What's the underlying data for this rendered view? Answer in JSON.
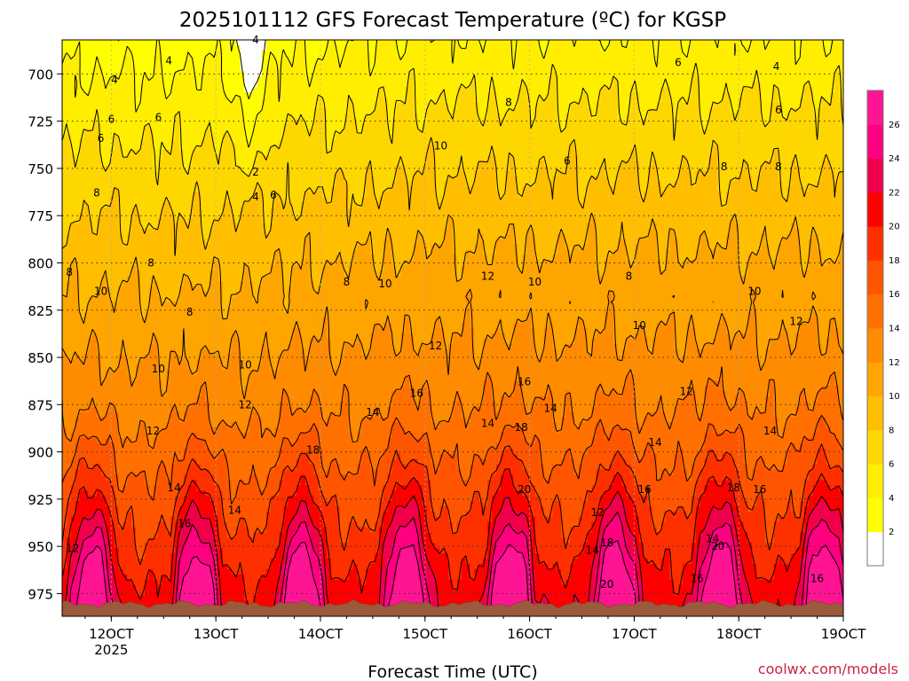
{
  "chart_data": {
    "type": "heatmap",
    "title": "2025101112 GFS Forecast Temperature (ºC) for KGSP",
    "xlabel": "Forecast Time (UTC)",
    "ylabel": "",
    "credit": "coolwx.com/models",
    "x_ticks": [
      {
        "day": 12,
        "label": "12OCT",
        "sub": "2025"
      },
      {
        "day": 13,
        "label": "13OCT"
      },
      {
        "day": 14,
        "label": "14OCT"
      },
      {
        "day": 15,
        "label": "15OCT"
      },
      {
        "day": 16,
        "label": "16OCT"
      },
      {
        "day": 17,
        "label": "17OCT"
      },
      {
        "day": 18,
        "label": "18OCT"
      },
      {
        "day": 19,
        "label": "19OCT"
      }
    ],
    "xlim": [
      11.53,
      19.0
    ],
    "y_ticks": [
      700,
      725,
      750,
      775,
      800,
      825,
      850,
      875,
      900,
      925,
      950,
      975
    ],
    "ylim": [
      682,
      987
    ],
    "colorbar": {
      "levels": [
        2,
        4,
        6,
        8,
        10,
        12,
        14,
        16,
        18,
        20,
        22,
        24,
        26
      ],
      "colors": [
        "#ffffff",
        "#ffff00",
        "#ffee00",
        "#ffd700",
        "#ffbf00",
        "#ffa500",
        "#ff8c00",
        "#ff7000",
        "#ff5500",
        "#ff3000",
        "#ff0000",
        "#f0004a",
        "#ff0080",
        "#ff1493"
      ]
    },
    "terrain_color": "#9b5a3c",
    "contour_labels": [
      {
        "day": 12.03,
        "p": 703,
        "t": "4"
      },
      {
        "day": 12.55,
        "p": 693,
        "t": "4"
      },
      {
        "day": 13.38,
        "p": 682,
        "t": "4"
      },
      {
        "day": 13.38,
        "p": 752,
        "t": "2"
      },
      {
        "day": 13.38,
        "p": 765,
        "t": "4"
      },
      {
        "day": 13.55,
        "p": 764,
        "t": "6"
      },
      {
        "day": 12.0,
        "p": 724,
        "t": "6"
      },
      {
        "day": 12.45,
        "p": 723,
        "t": "6"
      },
      {
        "day": 11.9,
        "p": 734,
        "t": "6"
      },
      {
        "day": 16.36,
        "p": 746,
        "t": "6"
      },
      {
        "day": 17.42,
        "p": 694,
        "t": "6"
      },
      {
        "day": 18.36,
        "p": 696,
        "t": "4"
      },
      {
        "day": 18.38,
        "p": 719,
        "t": "6"
      },
      {
        "day": 11.86,
        "p": 763,
        "t": "8"
      },
      {
        "day": 11.6,
        "p": 805,
        "t": "8"
      },
      {
        "day": 12.38,
        "p": 800,
        "t": "8"
      },
      {
        "day": 12.75,
        "p": 826,
        "t": "8"
      },
      {
        "day": 14.25,
        "p": 810,
        "t": "8"
      },
      {
        "day": 15.8,
        "p": 715,
        "t": "8"
      },
      {
        "day": 16.95,
        "p": 807,
        "t": "8"
      },
      {
        "day": 17.86,
        "p": 749,
        "t": "8"
      },
      {
        "day": 18.38,
        "p": 749,
        "t": "8"
      },
      {
        "day": 11.9,
        "p": 815,
        "t": "10"
      },
      {
        "day": 12.45,
        "p": 856,
        "t": "10"
      },
      {
        "day": 13.28,
        "p": 854,
        "t": "10"
      },
      {
        "day": 14.62,
        "p": 811,
        "t": "10"
      },
      {
        "day": 15.15,
        "p": 738,
        "t": "10"
      },
      {
        "day": 16.05,
        "p": 810,
        "t": "10"
      },
      {
        "day": 17.05,
        "p": 833,
        "t": "10"
      },
      {
        "day": 18.15,
        "p": 815,
        "t": "10"
      },
      {
        "day": 12.4,
        "p": 889,
        "t": "12"
      },
      {
        "day": 13.28,
        "p": 875,
        "t": "12"
      },
      {
        "day": 11.63,
        "p": 951,
        "t": "12"
      },
      {
        "day": 15.1,
        "p": 844,
        "t": "12"
      },
      {
        "day": 15.6,
        "p": 807,
        "t": "12"
      },
      {
        "day": 16.65,
        "p": 932,
        "t": "12"
      },
      {
        "day": 17.5,
        "p": 868,
        "t": "12"
      },
      {
        "day": 18.55,
        "p": 831,
        "t": "12"
      },
      {
        "day": 12.6,
        "p": 919,
        "t": "14"
      },
      {
        "day": 13.18,
        "p": 931,
        "t": "14"
      },
      {
        "day": 14.5,
        "p": 879,
        "t": "14"
      },
      {
        "day": 15.6,
        "p": 885,
        "t": "14"
      },
      {
        "day": 16.2,
        "p": 877,
        "t": "14"
      },
      {
        "day": 16.6,
        "p": 952,
        "t": "14"
      },
      {
        "day": 17.2,
        "p": 895,
        "t": "14"
      },
      {
        "day": 17.75,
        "p": 946,
        "t": "14"
      },
      {
        "day": 18.3,
        "p": 889,
        "t": "14"
      },
      {
        "day": 12.7,
        "p": 938,
        "t": "16"
      },
      {
        "day": 14.92,
        "p": 869,
        "t": "16"
      },
      {
        "day": 15.95,
        "p": 863,
        "t": "16"
      },
      {
        "day": 17.1,
        "p": 920,
        "t": "16"
      },
      {
        "day": 17.6,
        "p": 967,
        "t": "16"
      },
      {
        "day": 18.2,
        "p": 920,
        "t": "16"
      },
      {
        "day": 18.75,
        "p": 967,
        "t": "16"
      },
      {
        "day": 13.93,
        "p": 899,
        "t": "18"
      },
      {
        "day": 15.92,
        "p": 887,
        "t": "18"
      },
      {
        "day": 16.74,
        "p": 948,
        "t": "18"
      },
      {
        "day": 17.95,
        "p": 919,
        "t": "18"
      },
      {
        "day": 15.95,
        "p": 920,
        "t": "20"
      },
      {
        "day": 16.74,
        "p": 970,
        "t": "20"
      },
      {
        "day": 17.8,
        "p": 950,
        "t": "20"
      }
    ]
  }
}
